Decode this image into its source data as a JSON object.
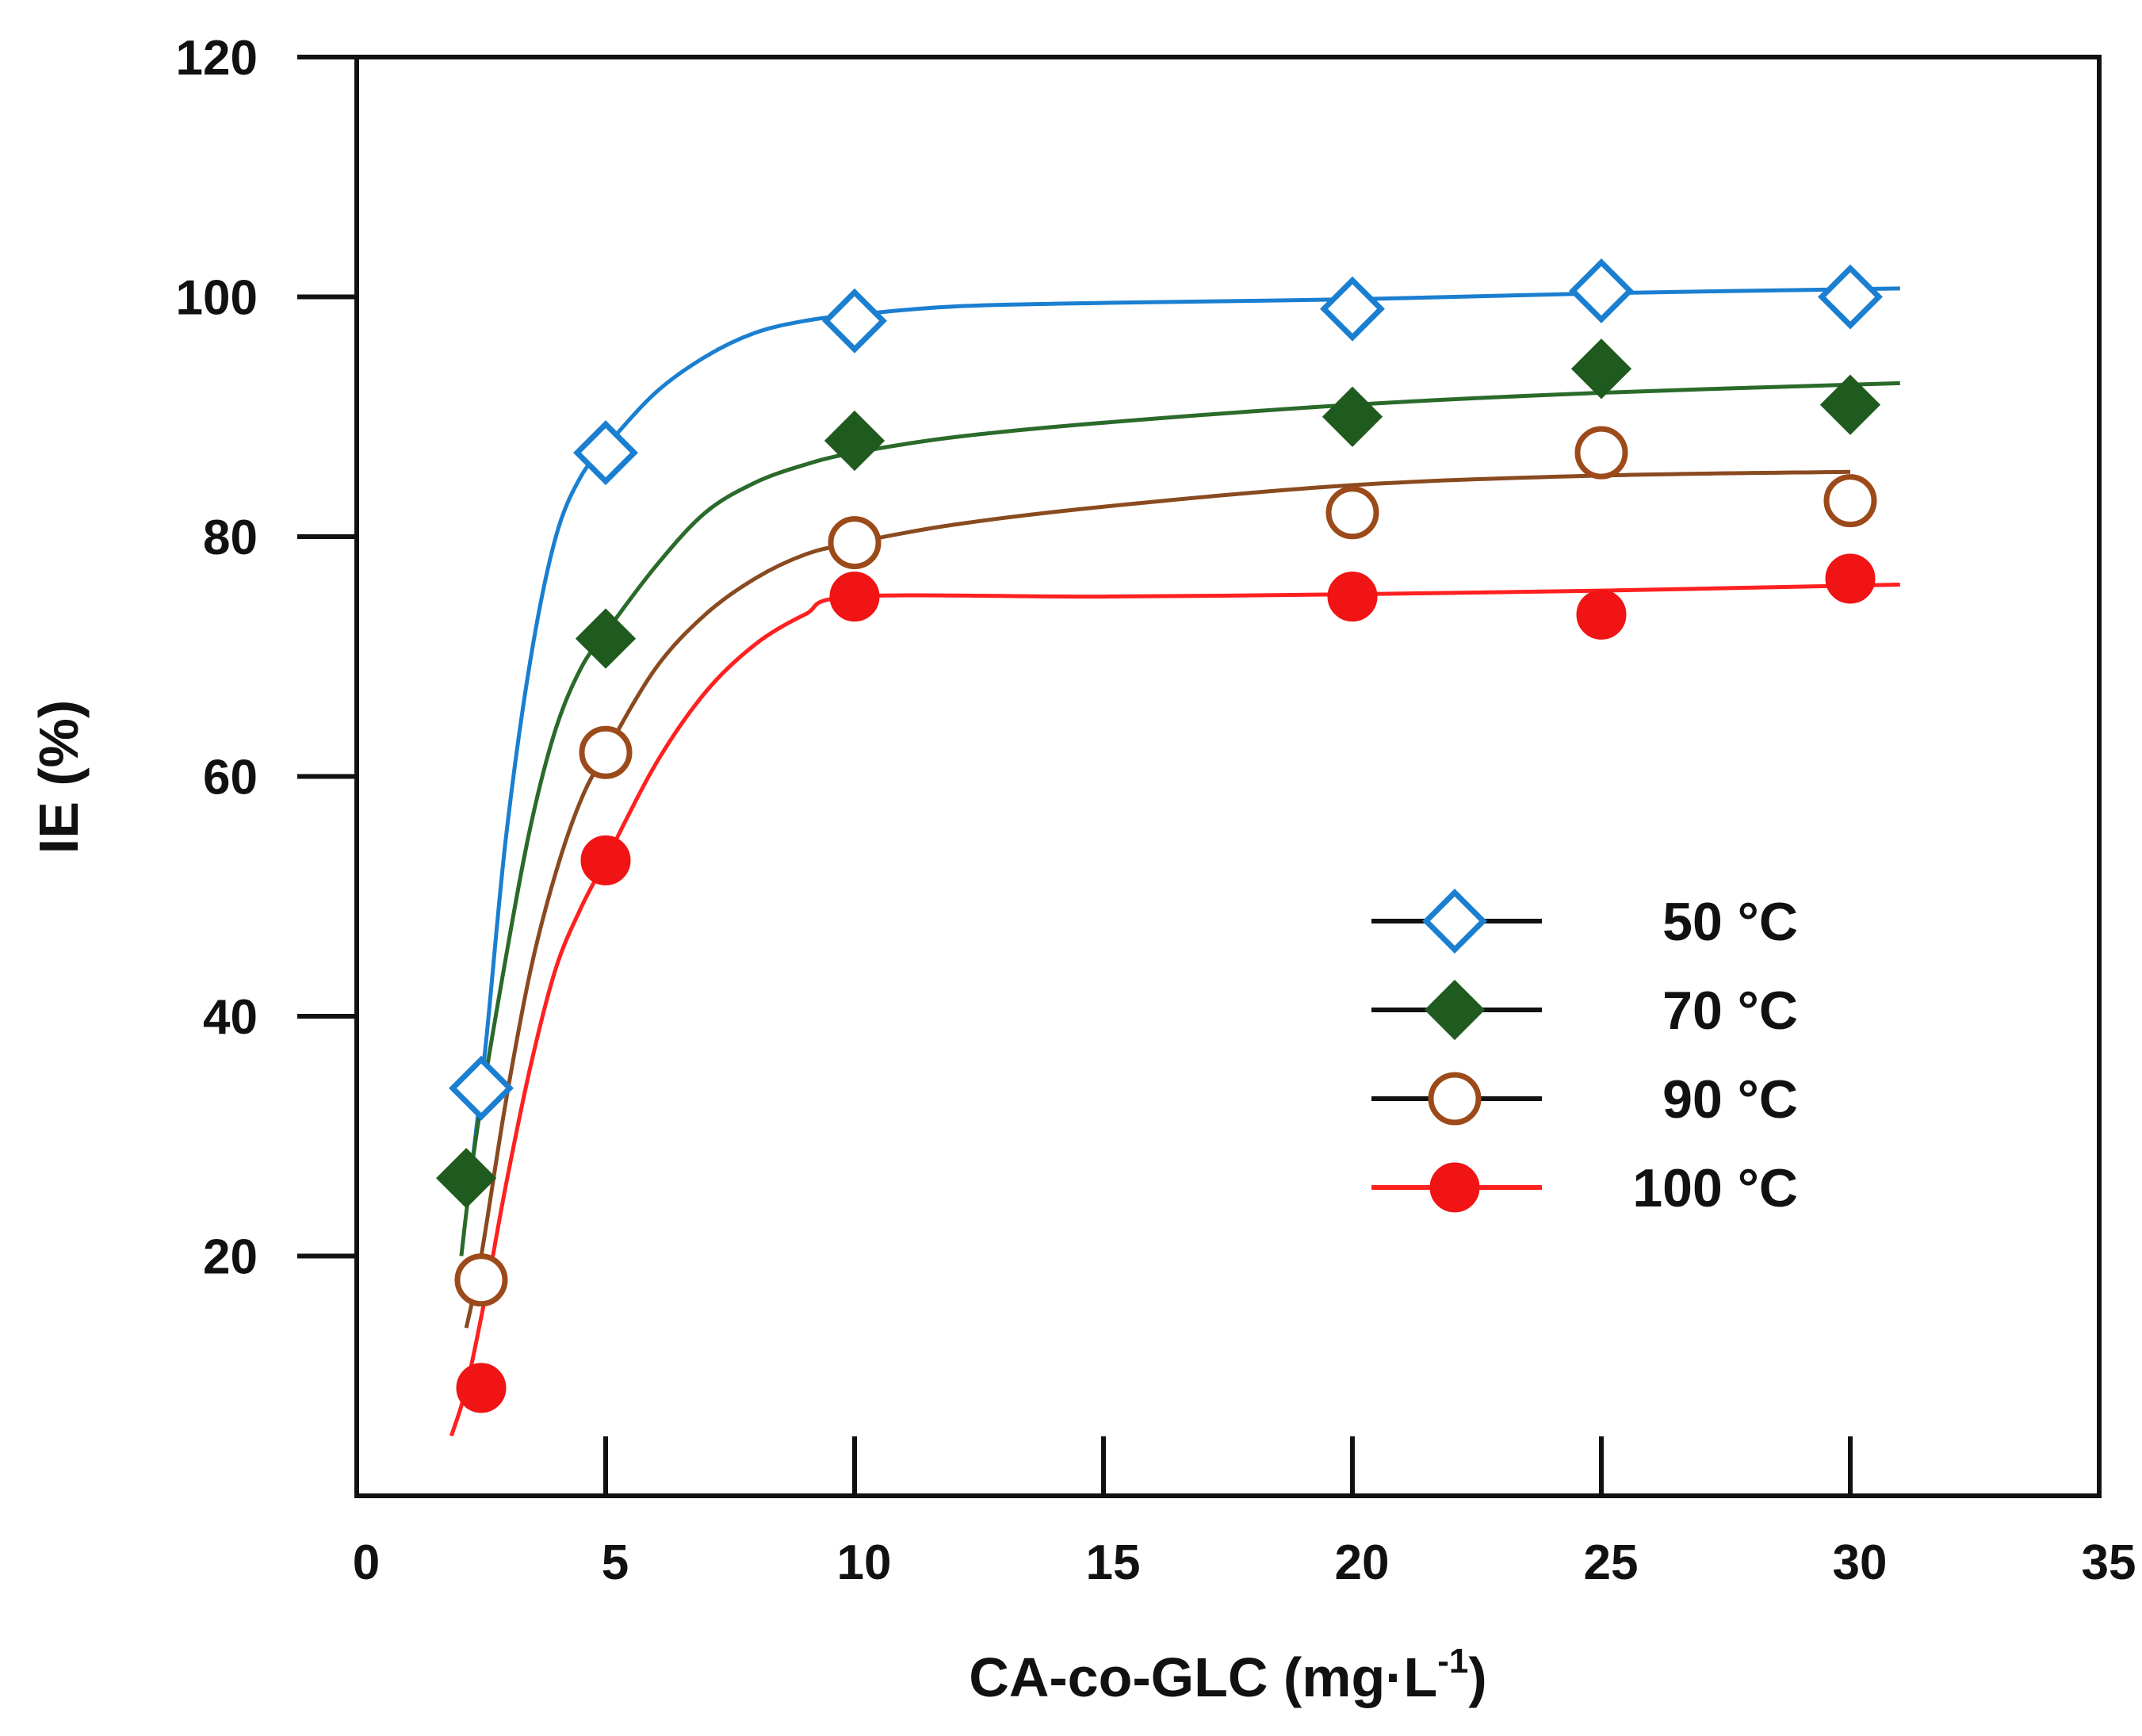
{
  "chart_data": {
    "type": "scatter",
    "title": "",
    "xlabel": "CA-co-GLC (mg·L",
    "xlabel_sup": "-1",
    "xlabel_end": ")",
    "ylabel": "IE (%)",
    "xlim": [
      0,
      35
    ],
    "ylim": [
      0,
      120
    ],
    "x_ticks": [
      0,
      5,
      10,
      15,
      20,
      25,
      30,
      35
    ],
    "y_ticks": [
      20,
      40,
      60,
      80,
      100,
      120
    ],
    "legend_position": "right",
    "series": [
      {
        "name": "50 °C",
        "marker": "diamond-open",
        "color": "#1a7fd0",
        "line_color": "#1a7fd0",
        "x": [
          2.5,
          5,
          10,
          20,
          25,
          30
        ],
        "y": [
          34,
          87,
          98,
          99,
          100.5,
          100
        ],
        "fit": [
          [
            2.3,
            27
          ],
          [
            2.6,
            38
          ],
          [
            3.0,
            55
          ],
          [
            3.5,
            70
          ],
          [
            4.0,
            80
          ],
          [
            4.5,
            85
          ],
          [
            5,
            87.5
          ],
          [
            6,
            92
          ],
          [
            7,
            95
          ],
          [
            8,
            97
          ],
          [
            9,
            98
          ],
          [
            10,
            98.5
          ],
          [
            12,
            99.2
          ],
          [
            15,
            99.5
          ],
          [
            20,
            99.8
          ],
          [
            25,
            100.3
          ],
          [
            31,
            100.7
          ]
        ]
      },
      {
        "name": "70 °C",
        "marker": "diamond-filled",
        "color": "#1f5a1f",
        "line_color": "#2a6a2a",
        "x": [
          2.2,
          5,
          10,
          20,
          25,
          30
        ],
        "y": [
          26.5,
          71.5,
          88,
          90,
          94,
          91
        ],
        "fit": [
          [
            2.1,
            20
          ],
          [
            2.4,
            30
          ],
          [
            3.0,
            45
          ],
          [
            3.5,
            56
          ],
          [
            4.0,
            64
          ],
          [
            4.5,
            69
          ],
          [
            5,
            72
          ],
          [
            6,
            77.5
          ],
          [
            7,
            82
          ],
          [
            8,
            84.5
          ],
          [
            9,
            86
          ],
          [
            10,
            87
          ],
          [
            12,
            88.3
          ],
          [
            15,
            89.5
          ],
          [
            20,
            91
          ],
          [
            25,
            92
          ],
          [
            31,
            92.8
          ]
        ]
      },
      {
        "name": "90 °C",
        "marker": "circle-open",
        "color": "#9c4a1a",
        "line_color": "#8a4a20",
        "x": [
          2.5,
          5,
          10,
          20,
          25,
          30
        ],
        "y": [
          18,
          62,
          79.5,
          82,
          87,
          83
        ],
        "fit": [
          [
            2.2,
            14
          ],
          [
            2.5,
            20
          ],
          [
            3.0,
            33
          ],
          [
            3.5,
            44
          ],
          [
            4.0,
            52
          ],
          [
            4.5,
            58
          ],
          [
            5,
            62
          ],
          [
            6,
            69
          ],
          [
            7,
            73.5
          ],
          [
            8,
            76.5
          ],
          [
            9,
            78.5
          ],
          [
            10,
            79.5
          ],
          [
            12,
            81
          ],
          [
            15,
            82.5
          ],
          [
            20,
            84.3
          ],
          [
            25,
            85.1
          ],
          [
            30,
            85.4
          ]
        ]
      },
      {
        "name": "100 °C",
        "marker": "circle-filled",
        "color": "#f01414",
        "line_color": "#ff2020",
        "x": [
          2.5,
          5,
          10,
          20,
          25,
          30
        ],
        "y": [
          9,
          53,
          75,
          75,
          73.5,
          76.5
        ],
        "fit": [
          [
            1.9,
            5
          ],
          [
            2.2,
            9
          ],
          [
            2.6,
            17
          ],
          [
            3.0,
            26
          ],
          [
            3.5,
            36
          ],
          [
            4.0,
            44
          ],
          [
            4.5,
            49
          ],
          [
            5,
            53
          ],
          [
            6,
            61
          ],
          [
            7,
            67
          ],
          [
            8,
            71
          ],
          [
            9,
            73.5
          ],
          [
            10,
            75
          ],
          [
            15,
            75
          ],
          [
            20,
            75.2
          ],
          [
            25,
            75.5
          ],
          [
            31,
            76
          ]
        ]
      }
    ]
  }
}
